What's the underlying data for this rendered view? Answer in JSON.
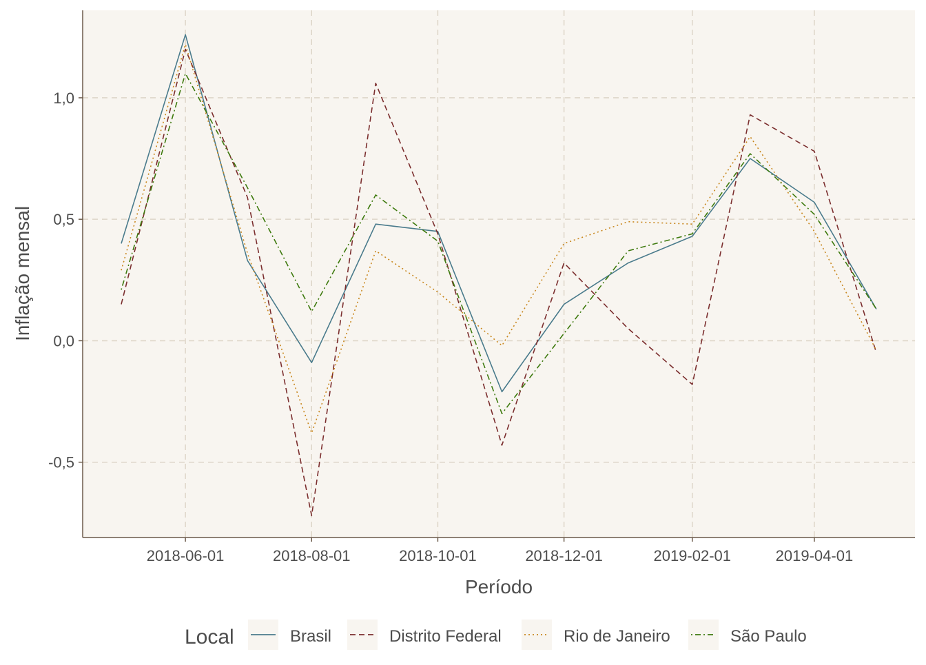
{
  "chart_data": {
    "type": "line",
    "xlabel": "Período",
    "ylabel": "Inflação mensal",
    "x": [
      "2018-05-01",
      "2018-06-01",
      "2018-07-01",
      "2018-08-01",
      "2018-09-01",
      "2018-10-01",
      "2018-11-01",
      "2018-12-01",
      "2019-01-01",
      "2019-02-01",
      "2019-03-01",
      "2019-04-01",
      "2019-05-01"
    ],
    "x_ticks": [
      "2018-06-01",
      "2018-08-01",
      "2018-10-01",
      "2018-12-01",
      "2019-02-01",
      "2019-04-01"
    ],
    "y_ticks": [
      -0.5,
      0.0,
      0.5,
      1.0
    ],
    "y_tick_labels": [
      "-0,5",
      "0,0",
      "0,5",
      "1,0"
    ],
    "ylim": [
      -0.81,
      1.36
    ],
    "grid": true,
    "legend_position": "bottom",
    "legend_title": "Local",
    "series": [
      {
        "name": "Brasil",
        "color": "#4a7b8c",
        "dash": "solid",
        "values": [
          0.4,
          1.26,
          0.33,
          -0.09,
          0.48,
          0.45,
          -0.21,
          0.15,
          0.32,
          0.43,
          0.75,
          0.57,
          0.13
        ]
      },
      {
        "name": "Distrito Federal",
        "color": "#7b2e2e",
        "dash": "dashed",
        "values": [
          0.15,
          1.2,
          0.59,
          -0.72,
          1.06,
          0.44,
          -0.43,
          0.32,
          0.05,
          -0.18,
          0.93,
          0.78,
          -0.05
        ]
      },
      {
        "name": "Rio de Janeiro",
        "color": "#c8861c",
        "dash": "dotted",
        "values": [
          0.29,
          1.22,
          0.36,
          -0.38,
          0.37,
          0.2,
          -0.02,
          0.4,
          0.49,
          0.48,
          0.84,
          0.45,
          -0.04
        ]
      },
      {
        "name": "São Paulo",
        "color": "#3e7a0e",
        "dash": "dotdash",
        "values": [
          0.21,
          1.1,
          0.63,
          0.12,
          0.6,
          0.41,
          -0.3,
          0.03,
          0.37,
          0.44,
          0.77,
          0.52,
          0.13
        ]
      }
    ]
  }
}
